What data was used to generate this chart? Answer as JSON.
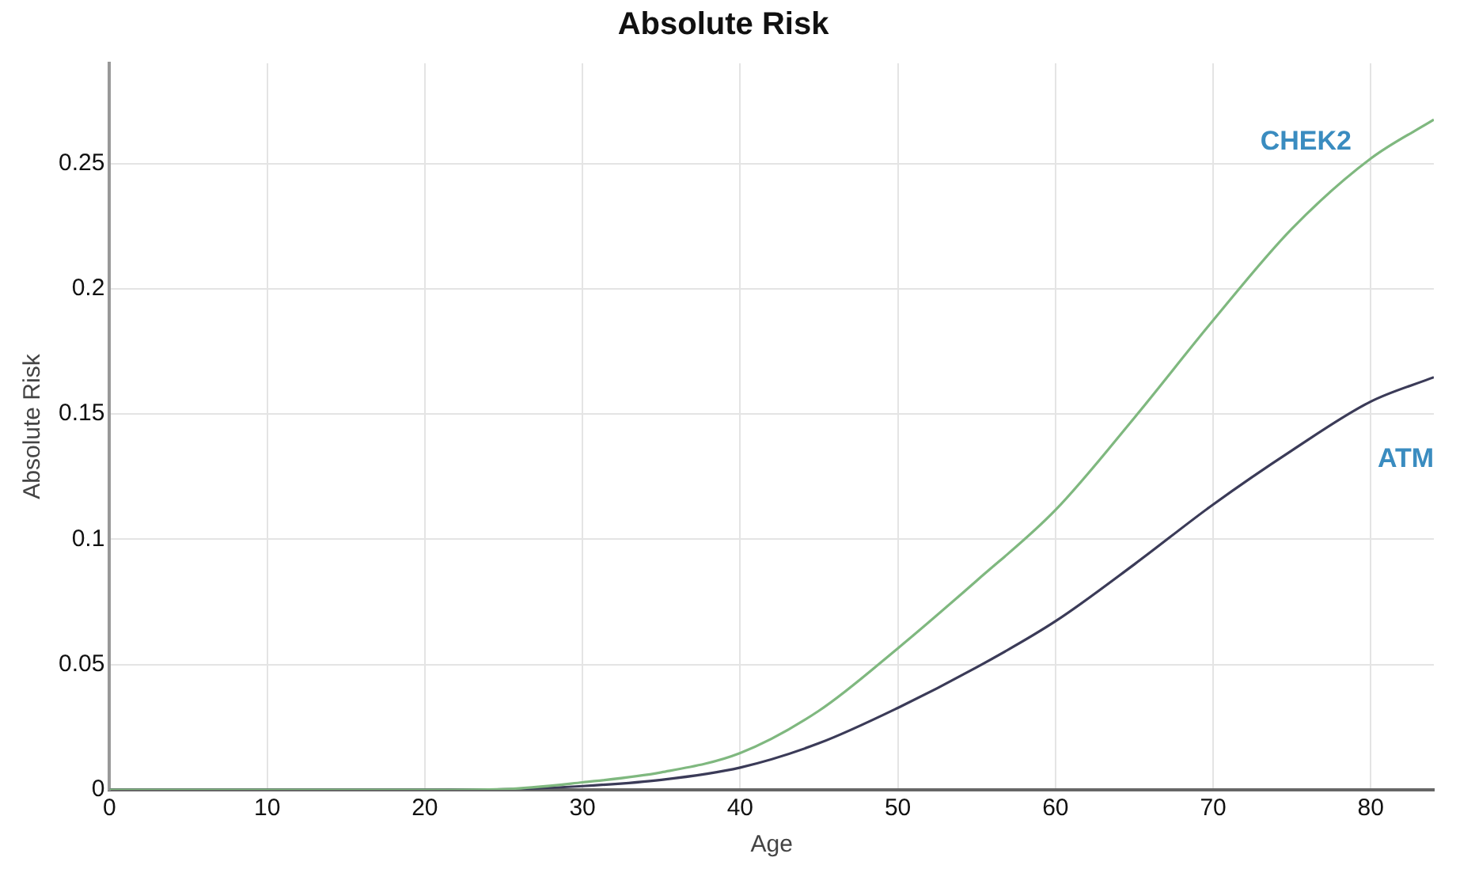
{
  "chart_data": {
    "type": "line",
    "title": "Absolute Risk",
    "xlabel": "Age",
    "ylabel": "Absolute Risk",
    "x": [
      0,
      10,
      20,
      25,
      30,
      35,
      40,
      45,
      50,
      55,
      60,
      65,
      70,
      75,
      80,
      84
    ],
    "series": [
      {
        "name": "CHEK2",
        "color": "#7fb87f",
        "values": [
          0,
          0,
          0,
          0.0003,
          0.003,
          0.007,
          0.0147,
          0.0316,
          0.0565,
          0.0835,
          0.1117,
          0.1485,
          0.1874,
          0.224,
          0.252,
          0.2675
        ]
      },
      {
        "name": "ATM",
        "color": "#3b3b58",
        "values": [
          0,
          0,
          0,
          0.0002,
          0.0015,
          0.004,
          0.0089,
          0.0186,
          0.0327,
          0.0489,
          0.0673,
          0.09,
          0.1139,
          0.1355,
          0.155,
          0.1647
        ]
      }
    ],
    "xlim": [
      0,
      84
    ],
    "xticks": [
      0,
      10,
      20,
      30,
      40,
      50,
      60,
      70,
      80
    ],
    "ylim": [
      0,
      0.29
    ],
    "yticks": [
      0,
      0.05,
      0.1,
      0.15,
      0.2,
      0.25
    ],
    "grid": true,
    "legend": false,
    "marker": "none",
    "line_style": "solid"
  }
}
